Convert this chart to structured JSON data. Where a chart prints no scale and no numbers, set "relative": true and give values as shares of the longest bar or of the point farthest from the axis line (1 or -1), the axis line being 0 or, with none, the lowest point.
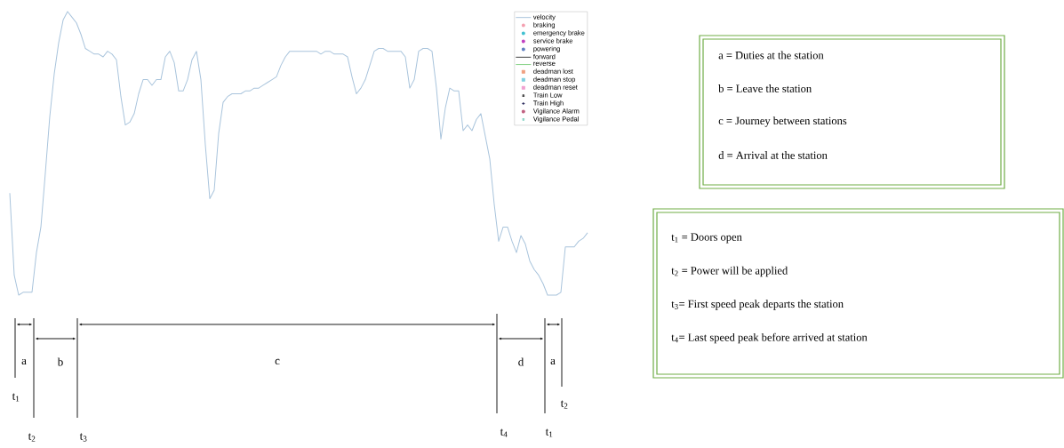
{
  "chart_data": {
    "type": "line",
    "relative": true,
    "legend": "top right",
    "categories": [
      null,
      null,
      null,
      null,
      null,
      null,
      null,
      null,
      null,
      null,
      null,
      null,
      null,
      null,
      null,
      null,
      null,
      null,
      null,
      null,
      null,
      null,
      null,
      null,
      null,
      null,
      null,
      null,
      null,
      null,
      null,
      null,
      null,
      null,
      null,
      null,
      null,
      null,
      null,
      null,
      null,
      null,
      null,
      null,
      null,
      null,
      null,
      null,
      null,
      null,
      null,
      null,
      null,
      null,
      null,
      null,
      null,
      null,
      null,
      null,
      null,
      null,
      null,
      null,
      null,
      null,
      null,
      null,
      null,
      null,
      null,
      null,
      null,
      null,
      null,
      null,
      null,
      null,
      null,
      null,
      null,
      null,
      null,
      null,
      null,
      null,
      null,
      null,
      null,
      null,
      null,
      null,
      null,
      null,
      null,
      null,
      null,
      null,
      null,
      null,
      null,
      null,
      null,
      null,
      null,
      null,
      null,
      null,
      null,
      null,
      null,
      null,
      null,
      null,
      null,
      null,
      null,
      null,
      null,
      null,
      null,
      null,
      null,
      null,
      null,
      null,
      null,
      null,
      null,
      null,
      null
    ],
    "series": [
      {
        "name": "velocity",
        "color": "#a9c4dc",
        "marker": "none",
        "values": [
          0.36,
          0.07,
          0,
          0.01,
          0.01,
          0.01,
          0.15,
          0.24,
          0.43,
          0.63,
          0.78,
          0.89,
          0.97,
          1,
          0.98,
          0.96,
          0.92,
          0.87,
          0.86,
          0.85,
          0.85,
          0.84,
          0.86,
          0.85,
          0.83,
          0.7,
          0.6,
          0.61,
          0.64,
          0.71,
          0.76,
          0.76,
          0.74,
          0.76,
          0.76,
          0.84,
          0.86,
          0.82,
          0.72,
          0.72,
          0.76,
          0.83,
          0.86,
          0.76,
          0.53,
          0.34,
          0.37,
          0.57,
          0.68,
          0.7,
          0.71,
          0.71,
          0.71,
          0.72,
          0.72,
          0.73,
          0.73,
          0.74,
          0.75,
          0.76,
          0.77,
          0.81,
          0.84,
          0.86,
          0.86,
          0.86,
          0.86,
          0.86,
          0.86,
          0.86,
          0.85,
          0.86,
          0.86,
          0.85,
          0.85,
          0.85,
          0.84,
          0.77,
          0.71,
          0.73,
          0.76,
          0.81,
          0.86,
          0.87,
          0.87,
          0.86,
          0.86,
          0.86,
          0.86,
          0.84,
          0.73,
          0.76,
          0.86,
          0.87,
          0.87,
          0.86,
          0.73,
          0.55,
          0.66,
          0.73,
          0.72,
          0.72,
          0.58,
          0.6,
          0.58,
          0.62,
          0.64,
          0.56,
          0.48,
          0.32,
          0.19,
          0.24,
          0.24,
          0.19,
          0.15,
          0.21,
          0.18,
          0.12,
          0.09,
          0.07,
          0.04,
          0,
          0,
          0,
          0.01,
          0.17,
          0.17,
          0.17,
          0.19,
          0.2,
          0.22
        ]
      },
      {
        "name": "braking",
        "color": "#f4a0b0",
        "marker": "circle",
        "values": [
          null,
          null,
          null,
          null,
          null,
          null,
          null,
          null,
          null,
          null,
          null,
          null,
          null,
          null,
          null,
          null,
          null,
          null,
          null,
          null,
          null,
          null,
          null,
          null,
          null,
          null,
          null,
          null,
          null,
          null,
          null,
          null,
          null,
          null,
          null,
          null,
          null,
          null,
          null,
          null,
          null,
          null,
          null,
          null,
          null,
          null,
          null,
          null,
          null,
          null,
          null,
          null,
          null,
          null,
          null,
          null,
          null,
          null,
          null,
          null,
          null,
          null,
          null,
          null,
          null,
          null,
          null,
          null,
          null,
          null,
          null,
          null,
          null,
          null,
          null,
          null,
          null,
          null,
          null,
          null,
          null,
          null,
          null,
          null,
          null,
          null,
          null,
          null,
          null,
          null,
          null,
          null,
          null,
          null,
          null,
          null,
          null,
          null,
          null,
          null,
          null,
          null,
          null,
          null,
          null,
          null,
          null,
          null,
          null,
          null,
          null,
          null,
          null,
          null,
          null,
          null,
          null,
          null,
          null,
          null,
          null,
          null,
          null,
          null,
          null,
          null,
          null,
          null,
          null,
          null,
          null
        ]
      },
      {
        "name": "emergency brake",
        "color": "#40c0d0",
        "marker": "circle",
        "values": [
          null,
          null,
          null,
          null,
          null,
          null,
          null,
          null,
          null,
          null,
          null,
          null,
          null,
          null,
          null,
          null,
          null,
          null,
          null,
          null,
          null,
          null,
          null,
          null,
          null,
          null,
          null,
          null,
          null,
          null,
          null,
          null,
          null,
          null,
          null,
          null,
          null,
          null,
          null,
          null,
          null,
          null,
          null,
          null,
          null,
          null,
          null,
          null,
          null,
          null,
          null,
          null,
          null,
          null,
          null,
          null,
          null,
          null,
          null,
          null,
          null,
          null,
          null,
          null,
          null,
          null,
          null,
          null,
          null,
          null,
          null,
          null,
          null,
          null,
          null,
          null,
          null,
          null,
          null,
          null,
          null,
          null,
          null,
          null,
          null,
          null,
          null,
          null,
          null,
          null,
          null,
          null,
          null,
          null,
          null,
          null,
          null,
          null,
          null,
          null,
          null,
          null,
          null,
          null,
          null,
          null,
          null,
          null,
          null,
          null,
          null,
          null,
          null,
          null,
          null,
          null,
          null,
          null,
          null,
          null,
          null,
          null,
          null,
          null,
          null,
          null,
          null,
          null,
          null,
          null,
          null
        ]
      },
      {
        "name": "service brake",
        "color": "#c040c0",
        "marker": "circle",
        "values": [
          null,
          null,
          null,
          null,
          null,
          null,
          null,
          null,
          null,
          null,
          null,
          null,
          null,
          null,
          null,
          null,
          null,
          null,
          null,
          null,
          null,
          null,
          null,
          null,
          null,
          null,
          null,
          null,
          null,
          null,
          null,
          null,
          null,
          null,
          null,
          null,
          null,
          null,
          null,
          null,
          null,
          null,
          null,
          null,
          null,
          null,
          null,
          null,
          null,
          null,
          null,
          null,
          null,
          null,
          null,
          null,
          null,
          null,
          null,
          null,
          null,
          null,
          null,
          null,
          null,
          null,
          null,
          null,
          null,
          null,
          null,
          null,
          null,
          null,
          null,
          null,
          null,
          null,
          null,
          null,
          null,
          null,
          null,
          null,
          null,
          null,
          null,
          null,
          null,
          null,
          null,
          null,
          null,
          null,
          null,
          null,
          null,
          null,
          null,
          null,
          null,
          null,
          null,
          null,
          null,
          null,
          null,
          null,
          null,
          null,
          null,
          null,
          null,
          null,
          null,
          null,
          null,
          null,
          null,
          null,
          null,
          null,
          null,
          null,
          null,
          null,
          null,
          null,
          null,
          null,
          null
        ]
      },
      {
        "name": "powering",
        "color": "#6080c0",
        "marker": "circle",
        "values": [
          null,
          null,
          null,
          null,
          null,
          null,
          null,
          null,
          null,
          null,
          null,
          null,
          null,
          null,
          null,
          null,
          null,
          null,
          null,
          null,
          null,
          null,
          null,
          null,
          null,
          null,
          null,
          null,
          null,
          null,
          null,
          null,
          null,
          null,
          null,
          null,
          null,
          null,
          null,
          null,
          null,
          null,
          null,
          null,
          null,
          null,
          null,
          null,
          null,
          null,
          null,
          null,
          null,
          null,
          null,
          null,
          null,
          null,
          null,
          null,
          null,
          null,
          null,
          null,
          null,
          null,
          null,
          null,
          null,
          null,
          null,
          null,
          null,
          null,
          null,
          null,
          null,
          null,
          null,
          null,
          null,
          null,
          null,
          null,
          null,
          null,
          null,
          null,
          null,
          null,
          null,
          null,
          null,
          null,
          null,
          null,
          null,
          null,
          null,
          null,
          null,
          null,
          null,
          null,
          null,
          null,
          null,
          null,
          null,
          null,
          null,
          null,
          null,
          null,
          null,
          null,
          null,
          null,
          null,
          null,
          null,
          null,
          null,
          null,
          null,
          null,
          null,
          null,
          null,
          null,
          null
        ]
      },
      {
        "name": "forward",
        "color": "#404040",
        "marker": "none",
        "values": [
          null,
          null,
          null,
          null,
          null,
          null,
          null,
          null,
          null,
          null,
          null,
          null,
          null,
          null,
          null,
          null,
          null,
          null,
          null,
          null,
          null,
          null,
          null,
          null,
          null,
          null,
          null,
          null,
          null,
          null,
          null,
          null,
          null,
          null,
          null,
          null,
          null,
          null,
          null,
          null,
          null,
          null,
          null,
          null,
          null,
          null,
          null,
          null,
          null,
          null,
          null,
          null,
          null,
          null,
          null,
          null,
          null,
          null,
          null,
          null,
          null,
          null,
          null,
          null,
          null,
          null,
          null,
          null,
          null,
          null,
          null,
          null,
          null,
          null,
          null,
          null,
          null,
          null,
          null,
          null,
          null,
          null,
          null,
          null,
          null,
          null,
          null,
          null,
          null,
          null,
          null,
          null,
          null,
          null,
          null,
          null,
          null,
          null,
          null,
          null,
          null,
          null,
          null,
          null,
          null,
          null,
          null,
          null,
          null,
          null,
          null,
          null,
          null,
          null,
          null,
          null,
          null,
          null,
          null,
          null,
          null,
          null,
          null,
          null,
          null,
          null,
          null,
          null,
          null,
          null,
          null
        ]
      },
      {
        "name": "reverse",
        "color": "#80d080",
        "marker": "none",
        "values": [
          null,
          null,
          null,
          null,
          null,
          null,
          null,
          null,
          null,
          null,
          null,
          null,
          null,
          null,
          null,
          null,
          null,
          null,
          null,
          null,
          null,
          null,
          null,
          null,
          null,
          null,
          null,
          null,
          null,
          null,
          null,
          null,
          null,
          null,
          null,
          null,
          null,
          null,
          null,
          null,
          null,
          null,
          null,
          null,
          null,
          null,
          null,
          null,
          null,
          null,
          null,
          null,
          null,
          null,
          null,
          null,
          null,
          null,
          null,
          null,
          null,
          null,
          null,
          null,
          null,
          null,
          null,
          null,
          null,
          null,
          null,
          null,
          null,
          null,
          null,
          null,
          null,
          null,
          null,
          null,
          null,
          null,
          null,
          null,
          null,
          null,
          null,
          null,
          null,
          null,
          null,
          null,
          null,
          null,
          null,
          null,
          null,
          null,
          null,
          null,
          null,
          null,
          null,
          null,
          null,
          null,
          null,
          null,
          null,
          null,
          null,
          null,
          null,
          null,
          null,
          null,
          null,
          null,
          null,
          null,
          null,
          null,
          null,
          null,
          null,
          null,
          null,
          null,
          null,
          null,
          null
        ]
      },
      {
        "name": "deadman lost",
        "color": "#f0a080",
        "marker": "square",
        "values": [
          null,
          null,
          null,
          null,
          null,
          null,
          null,
          null,
          null,
          null,
          null,
          null,
          null,
          null,
          null,
          null,
          null,
          null,
          null,
          null,
          null,
          null,
          null,
          null,
          null,
          null,
          null,
          null,
          null,
          null,
          null,
          null,
          null,
          null,
          null,
          null,
          null,
          null,
          null,
          null,
          null,
          null,
          null,
          null,
          null,
          null,
          null,
          null,
          null,
          null,
          null,
          null,
          null,
          null,
          null,
          null,
          null,
          null,
          null,
          null,
          null,
          null,
          null,
          null,
          null,
          null,
          null,
          null,
          null,
          null,
          null,
          null,
          null,
          null,
          null,
          null,
          null,
          null,
          null,
          null,
          null,
          null,
          null,
          null,
          null,
          null,
          null,
          null,
          null,
          null,
          null,
          null,
          null,
          null,
          null,
          null,
          null,
          null,
          null,
          null,
          null,
          null,
          null,
          null,
          null,
          null,
          null,
          null,
          null,
          null,
          null,
          null,
          null,
          null,
          null,
          null,
          null,
          null,
          null,
          null,
          null,
          null,
          null,
          null,
          null,
          null,
          null,
          null,
          null,
          null,
          null
        ]
      },
      {
        "name": "deadman stop",
        "color": "#80d0e0",
        "marker": "square",
        "values": [
          null,
          null,
          null,
          null,
          null,
          null,
          null,
          null,
          null,
          null,
          null,
          null,
          null,
          null,
          null,
          null,
          null,
          null,
          null,
          null,
          null,
          null,
          null,
          null,
          null,
          null,
          null,
          null,
          null,
          null,
          null,
          null,
          null,
          null,
          null,
          null,
          null,
          null,
          null,
          null,
          null,
          null,
          null,
          null,
          null,
          null,
          null,
          null,
          null,
          null,
          null,
          null,
          null,
          null,
          null,
          null,
          null,
          null,
          null,
          null,
          null,
          null,
          null,
          null,
          null,
          null,
          null,
          null,
          null,
          null,
          null,
          null,
          null,
          null,
          null,
          null,
          null,
          null,
          null,
          null,
          null,
          null,
          null,
          null,
          null,
          null,
          null,
          null,
          null,
          null,
          null,
          null,
          null,
          null,
          null,
          null,
          null,
          null,
          null,
          null,
          null,
          null,
          null,
          null,
          null,
          null,
          null,
          null,
          null,
          null,
          null,
          null,
          null,
          null,
          null,
          null,
          null,
          null,
          null,
          null,
          null,
          null,
          null,
          null,
          null,
          null,
          null,
          null,
          null,
          null,
          null
        ]
      },
      {
        "name": "deadman reset",
        "color": "#f0a0d0",
        "marker": "square",
        "values": [
          null,
          null,
          null,
          null,
          null,
          null,
          null,
          null,
          null,
          null,
          null,
          null,
          null,
          null,
          null,
          null,
          null,
          null,
          null,
          null,
          null,
          null,
          null,
          null,
          null,
          null,
          null,
          null,
          null,
          null,
          null,
          null,
          null,
          null,
          null,
          null,
          null,
          null,
          null,
          null,
          null,
          null,
          null,
          null,
          null,
          null,
          null,
          null,
          null,
          null,
          null,
          null,
          null,
          null,
          null,
          null,
          null,
          null,
          null,
          null,
          null,
          null,
          null,
          null,
          null,
          null,
          null,
          null,
          null,
          null,
          null,
          null,
          null,
          null,
          null,
          null,
          null,
          null,
          null,
          null,
          null,
          null,
          null,
          null,
          null,
          null,
          null,
          null,
          null,
          null,
          null,
          null,
          null,
          null,
          null,
          null,
          null,
          null,
          null,
          null,
          null,
          null,
          null,
          null,
          null,
          null,
          null,
          null,
          null,
          null,
          null,
          null,
          null,
          null,
          null,
          null,
          null,
          null,
          null,
          null,
          null,
          null,
          null,
          null,
          null,
          null,
          null,
          null,
          null,
          null,
          null
        ]
      },
      {
        "name": "Train Low",
        "color": "#303030",
        "marker": "star",
        "values": [
          null,
          null,
          null,
          null,
          null,
          null,
          null,
          null,
          null,
          null,
          null,
          null,
          null,
          null,
          null,
          null,
          null,
          null,
          null,
          null,
          null,
          null,
          null,
          null,
          null,
          null,
          null,
          null,
          null,
          null,
          null,
          null,
          null,
          null,
          null,
          null,
          null,
          null,
          null,
          null,
          null,
          null,
          null,
          null,
          null,
          null,
          null,
          null,
          null,
          null,
          null,
          null,
          null,
          null,
          null,
          null,
          null,
          null,
          null,
          null,
          null,
          null,
          null,
          null,
          null,
          null,
          null,
          null,
          null,
          null,
          null,
          null,
          null,
          null,
          null,
          null,
          null,
          null,
          null,
          null,
          null,
          null,
          null,
          null,
          null,
          null,
          null,
          null,
          null,
          null,
          null,
          null,
          null,
          null,
          null,
          null,
          null,
          null,
          null,
          null,
          null,
          null,
          null,
          null,
          null,
          null,
          null,
          null,
          null,
          null,
          null,
          null,
          null,
          null,
          null,
          null,
          null,
          null,
          null,
          null,
          null,
          null,
          null,
          null,
          null,
          null,
          null,
          null,
          null,
          null,
          null
        ]
      },
      {
        "name": "Train High",
        "color": "#303060",
        "marker": "cross",
        "values": [
          null,
          null,
          null,
          null,
          null,
          null,
          null,
          null,
          null,
          null,
          null,
          null,
          null,
          null,
          null,
          null,
          null,
          null,
          null,
          null,
          null,
          null,
          null,
          null,
          null,
          null,
          null,
          null,
          null,
          null,
          null,
          null,
          null,
          null,
          null,
          null,
          null,
          null,
          null,
          null,
          null,
          null,
          null,
          null,
          null,
          null,
          null,
          null,
          null,
          null,
          null,
          null,
          null,
          null,
          null,
          null,
          null,
          null,
          null,
          null,
          null,
          null,
          null,
          null,
          null,
          null,
          null,
          null,
          null,
          null,
          null,
          null,
          null,
          null,
          null,
          null,
          null,
          null,
          null,
          null,
          null,
          null,
          null,
          null,
          null,
          null,
          null,
          null,
          null,
          null,
          null,
          null,
          null,
          null,
          null,
          null,
          null,
          null,
          null,
          null,
          null,
          null,
          null,
          null,
          null,
          null,
          null,
          null,
          null,
          null,
          null,
          null,
          null,
          null,
          null,
          null,
          null,
          null,
          null,
          null,
          null,
          null,
          null,
          null,
          null,
          null,
          null,
          null,
          null,
          null,
          null
        ]
      },
      {
        "name": "Vigilance Alarm",
        "color": "#c06080",
        "marker": "circle",
        "values": [
          null,
          null,
          null,
          null,
          null,
          null,
          null,
          null,
          null,
          null,
          null,
          null,
          null,
          null,
          null,
          null,
          null,
          null,
          null,
          null,
          null,
          null,
          null,
          null,
          null,
          null,
          null,
          null,
          null,
          null,
          null,
          null,
          null,
          null,
          null,
          null,
          null,
          null,
          null,
          null,
          null,
          null,
          null,
          null,
          null,
          null,
          null,
          null,
          null,
          null,
          null,
          null,
          null,
          null,
          null,
          null,
          null,
          null,
          null,
          null,
          null,
          null,
          null,
          null,
          null,
          null,
          null,
          null,
          null,
          null,
          null,
          null,
          null,
          null,
          null,
          null,
          null,
          null,
          null,
          null,
          null,
          null,
          null,
          null,
          null,
          null,
          null,
          null,
          null,
          null,
          null,
          null,
          null,
          null,
          null,
          null,
          null,
          null,
          null,
          null,
          null,
          null,
          null,
          null,
          null,
          null,
          null,
          null,
          null,
          null,
          null,
          null,
          null,
          null,
          null,
          null,
          null,
          null,
          null,
          null,
          null,
          null,
          null,
          null,
          null,
          null,
          null,
          null,
          null,
          null,
          null
        ]
      },
      {
        "name": "Vigilance Pedal",
        "color": "#80d0c0",
        "marker": "star",
        "values": [
          null,
          null,
          null,
          null,
          null,
          null,
          null,
          null,
          null,
          null,
          null,
          null,
          null,
          null,
          null,
          null,
          null,
          null,
          null,
          null,
          null,
          null,
          null,
          null,
          null,
          null,
          null,
          null,
          null,
          null,
          null,
          null,
          null,
          null,
          null,
          null,
          null,
          null,
          null,
          null,
          null,
          null,
          null,
          null,
          null,
          null,
          null,
          null,
          null,
          null,
          null,
          null,
          null,
          null,
          null,
          null,
          null,
          null,
          null,
          null,
          null,
          null,
          null,
          null,
          null,
          null,
          null,
          null,
          null,
          null,
          null,
          null,
          null,
          null,
          null,
          null,
          null,
          null,
          null,
          null,
          null,
          null,
          null,
          null,
          null,
          null,
          null,
          null,
          null,
          null,
          null,
          null,
          null,
          null,
          null,
          null,
          null,
          null,
          null,
          null,
          null,
          null,
          null,
          null,
          null,
          null,
          null,
          null,
          null,
          null,
          null,
          null,
          null,
          null,
          null,
          null,
          null,
          null,
          null,
          null,
          null,
          null,
          null,
          null,
          null,
          null,
          null,
          null,
          null,
          null,
          null
        ]
      }
    ],
    "annotations": [
      "a",
      "b",
      "c",
      "d",
      "a",
      "t$_{1}$",
      "t$_{2}$",
      "t$_{3}$",
      "t$_{4}$",
      "t$_{1}$",
      "t$_{2}$",
      "a = Duties at the station",
      "b = Leave the station",
      "c = Journey between stations",
      "d = Arrival at the station",
      "t$_{1}$ = Doors open",
      "t$_{2}$ = Power will be applied",
      "t$_{3}$= First speed peak departs the station",
      "t$_{4}$= Last speed peak before arrived at station"
    ]
  }
}
